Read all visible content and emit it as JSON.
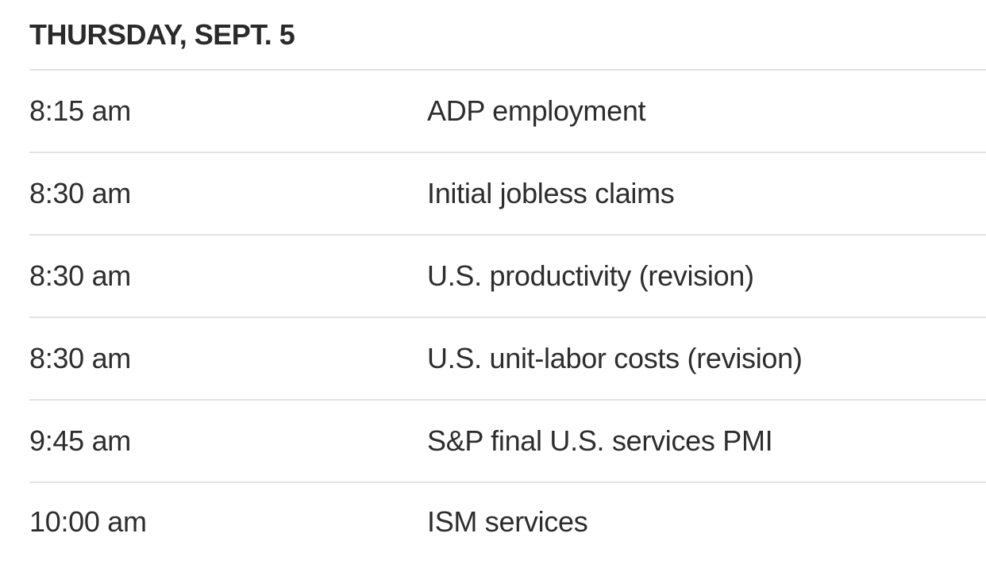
{
  "table": {
    "header": "THURSDAY, SEPT. 5",
    "columns": [
      "time",
      "event"
    ],
    "rows": [
      {
        "time": "8:15 am",
        "event": "ADP employment"
      },
      {
        "time": "8:30 am",
        "event": "Initial jobless claims"
      },
      {
        "time": "8:30 am",
        "event": "U.S. productivity (revision)"
      },
      {
        "time": "8:30 am",
        "event": "U.S. unit-labor costs (revision)"
      },
      {
        "time": "9:45 am",
        "event": "S&P final U.S. services PMI"
      },
      {
        "time": "10:00 am",
        "event": "ISM services"
      }
    ]
  },
  "colors": {
    "text": "#2d2d2d",
    "header_text": "#2a2a2a",
    "divider": "#e3e3e3",
    "background": "#ffffff"
  }
}
